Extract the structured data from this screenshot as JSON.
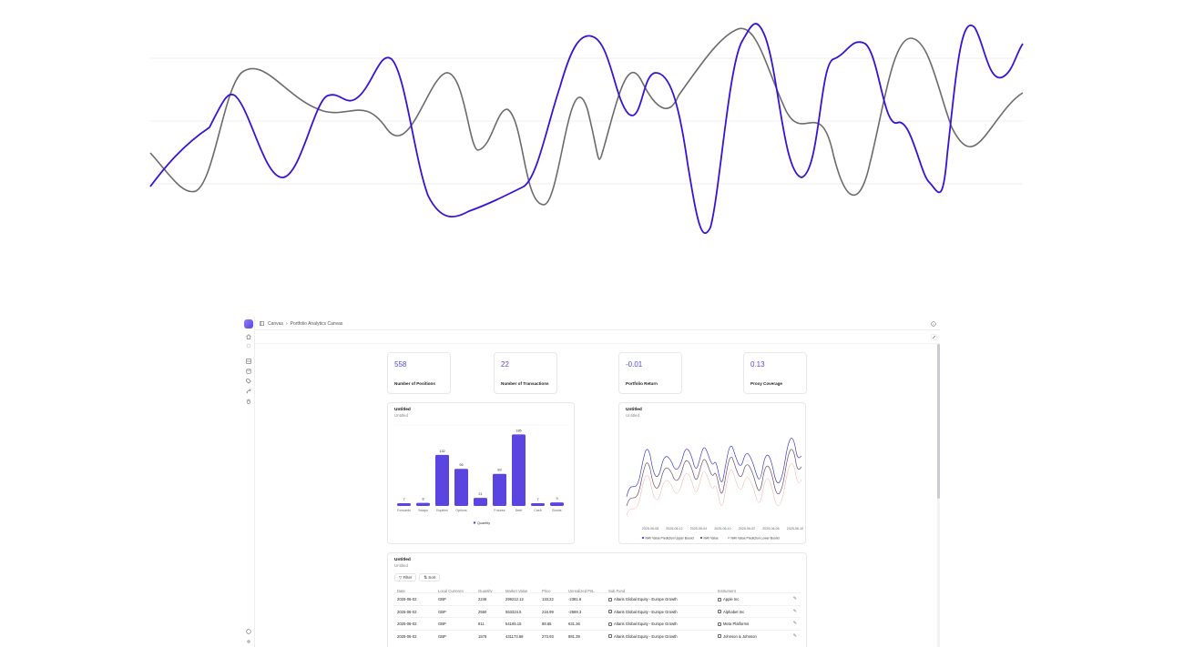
{
  "hero": {
    "series": [
      {
        "name": "",
        "color": "#3a12d6"
      },
      {
        "name": "",
        "color": "#6b6b6b"
      }
    ]
  },
  "breadcrumb": {
    "root": "Canvas",
    "sep": "›",
    "current": "Portfolio Analytics Canvas"
  },
  "kpis": [
    {
      "value": "558",
      "label": "Number of Positions"
    },
    {
      "value": "22",
      "label": "Number of Transactions"
    },
    {
      "value": "-0.01",
      "label": "Portfolio Return"
    },
    {
      "value": "0.13",
      "label": "Proxy Coverage"
    }
  ],
  "bar_card": {
    "title": "Untitled",
    "subtitle": "Untitled"
  },
  "line_card": {
    "title": "Untitled",
    "subtitle": "Untitled"
  },
  "table_card": {
    "title": "Untitled",
    "subtitle": "Untitled",
    "filter_label": "Filter",
    "sort_label": "Sort"
  },
  "table": {
    "columns": [
      "Date",
      "Local Currency",
      "Quantity",
      "Market Value",
      "Price",
      "Unrealized PnL",
      "Sub Fund",
      "Instrument"
    ],
    "rows": [
      [
        "2025-06-02",
        "GBP",
        "2246",
        "299212.12",
        "133.22",
        "-2381.6",
        "Altaris Global Equity - Europe Growth",
        "Apple Inc"
      ],
      [
        "2025-06-02",
        "GBP",
        "2550",
        "553324.5",
        "216.99",
        "-2669.3",
        "Altaris Global Equity - Europe Growth",
        "Alphabet Inc"
      ],
      [
        "2025-06-02",
        "GBP",
        "611",
        "54165.15",
        "88.65",
        "631.36",
        "Altaris Global Equity - Europe Growth",
        "Meta Platforms"
      ],
      [
        "2025-06-02",
        "GBP",
        "1576",
        "431173.68",
        "273.93",
        "881.39",
        "Altaris Global Equity - Europe Growth",
        "Johnson & Johnson"
      ]
    ]
  },
  "chart_data": [
    {
      "type": "bar",
      "title": "Untitled",
      "subtitle": "Untitled",
      "categories": [
        "Forwards",
        "Swaps",
        "Equities",
        "Options",
        "",
        "Futures",
        "Debt",
        "Cash",
        "Bonds"
      ],
      "series": [
        {
          "name": "Quantity",
          "values": [
            7,
            8,
            132,
            96,
            21,
            83,
            185,
            7,
            9
          ],
          "color": "#5b45e0"
        }
      ],
      "ylim": [
        0,
        200
      ]
    },
    {
      "type": "line",
      "title": "Untitled",
      "subtitle": "Untitled",
      "x_ticks": [
        "2025-06-08",
        "2025-06-12",
        "2025-06-04",
        "2025-06-10",
        "2025-06-02",
        "2025-06-06",
        "2025-06-10"
      ],
      "series": [
        {
          "name": "NAV Value Prediction Upper Bound",
          "color": "#3b3bd1"
        },
        {
          "name": "NAV Value",
          "color": "#6b4a66"
        },
        {
          "name": "NAV Value Prediction Lower Bound",
          "color": "#f0a7a0"
        }
      ]
    }
  ]
}
